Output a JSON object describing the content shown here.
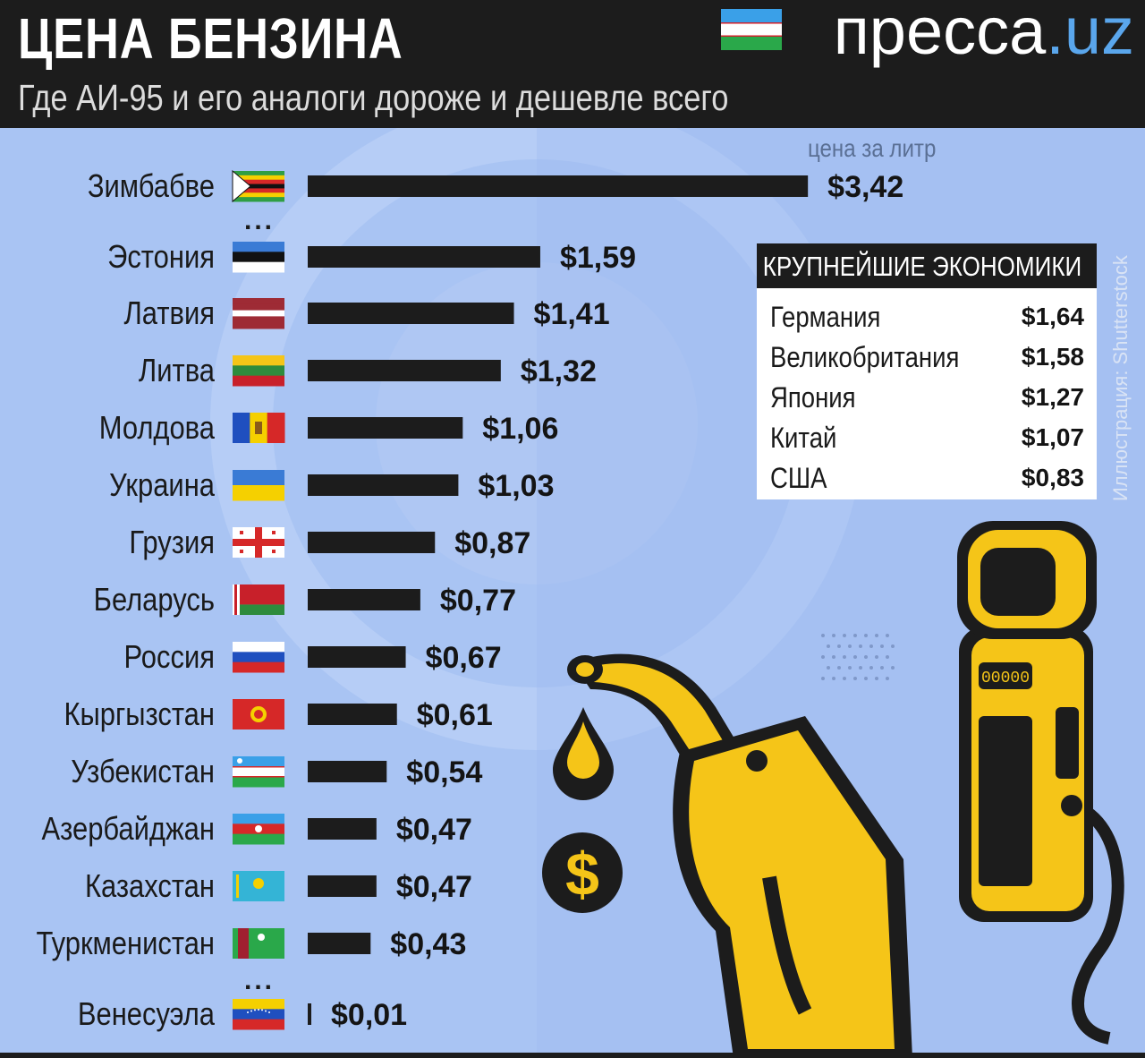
{
  "header": {
    "title": "ЦЕНА БЕНЗИНА",
    "subtitle": "Где АИ-95 и его аналоги дороже и дешевле всего",
    "brand_main": "пресса",
    "brand_tld": ".uz"
  },
  "unit_label": "цена за литр",
  "ellipsis": "...",
  "chart_data": {
    "type": "bar",
    "orientation": "horizontal",
    "categories": [
      "Зимбабве",
      "Эстония",
      "Латвия",
      "Литва",
      "Молдова",
      "Украина",
      "Грузия",
      "Беларусь",
      "Россия",
      "Кыргызстан",
      "Узбекистан",
      "Азербайджан",
      "Казахстан",
      "Туркменистан",
      "Венесуэла"
    ],
    "values": [
      3.42,
      1.59,
      1.41,
      1.32,
      1.06,
      1.03,
      0.87,
      0.77,
      0.67,
      0.61,
      0.54,
      0.47,
      0.47,
      0.43,
      0.01
    ],
    "value_labels": [
      "$3,42",
      "$1,59",
      "$1,41",
      "$1,32",
      "$1,06",
      "$1,03",
      "$0,87",
      "$0,77",
      "$0,67",
      "$0,61",
      "$0,54",
      "$0,47",
      "$0,47",
      "$0,43",
      "$0,01"
    ],
    "unit": "цена за литр",
    "title": "ЦЕНА БЕНЗИНА",
    "subtitle": "Где АИ-95 и его аналоги дороже и дешевле всего",
    "bar_color": "#1c1c1c",
    "grid": false,
    "legend": "none"
  },
  "economies": {
    "title": "КРУПНЕЙШИЕ ЭКОНОМИКИ",
    "rows": [
      {
        "country": "Германия",
        "price": "$1,64"
      },
      {
        "country": "Великобритания",
        "price": "$1,58"
      },
      {
        "country": "Япония",
        "price": "$1,27"
      },
      {
        "country": "Китай",
        "price": "$1,07"
      },
      {
        "country": "США",
        "price": "$0,83"
      }
    ]
  },
  "credit": "Иллюстрация: Shutterstock",
  "colors": {
    "background": "#a9c4f3",
    "header": "#1c1c1c",
    "accent_blue": "#5aa6ec",
    "pump_yellow": "#f5c518"
  }
}
